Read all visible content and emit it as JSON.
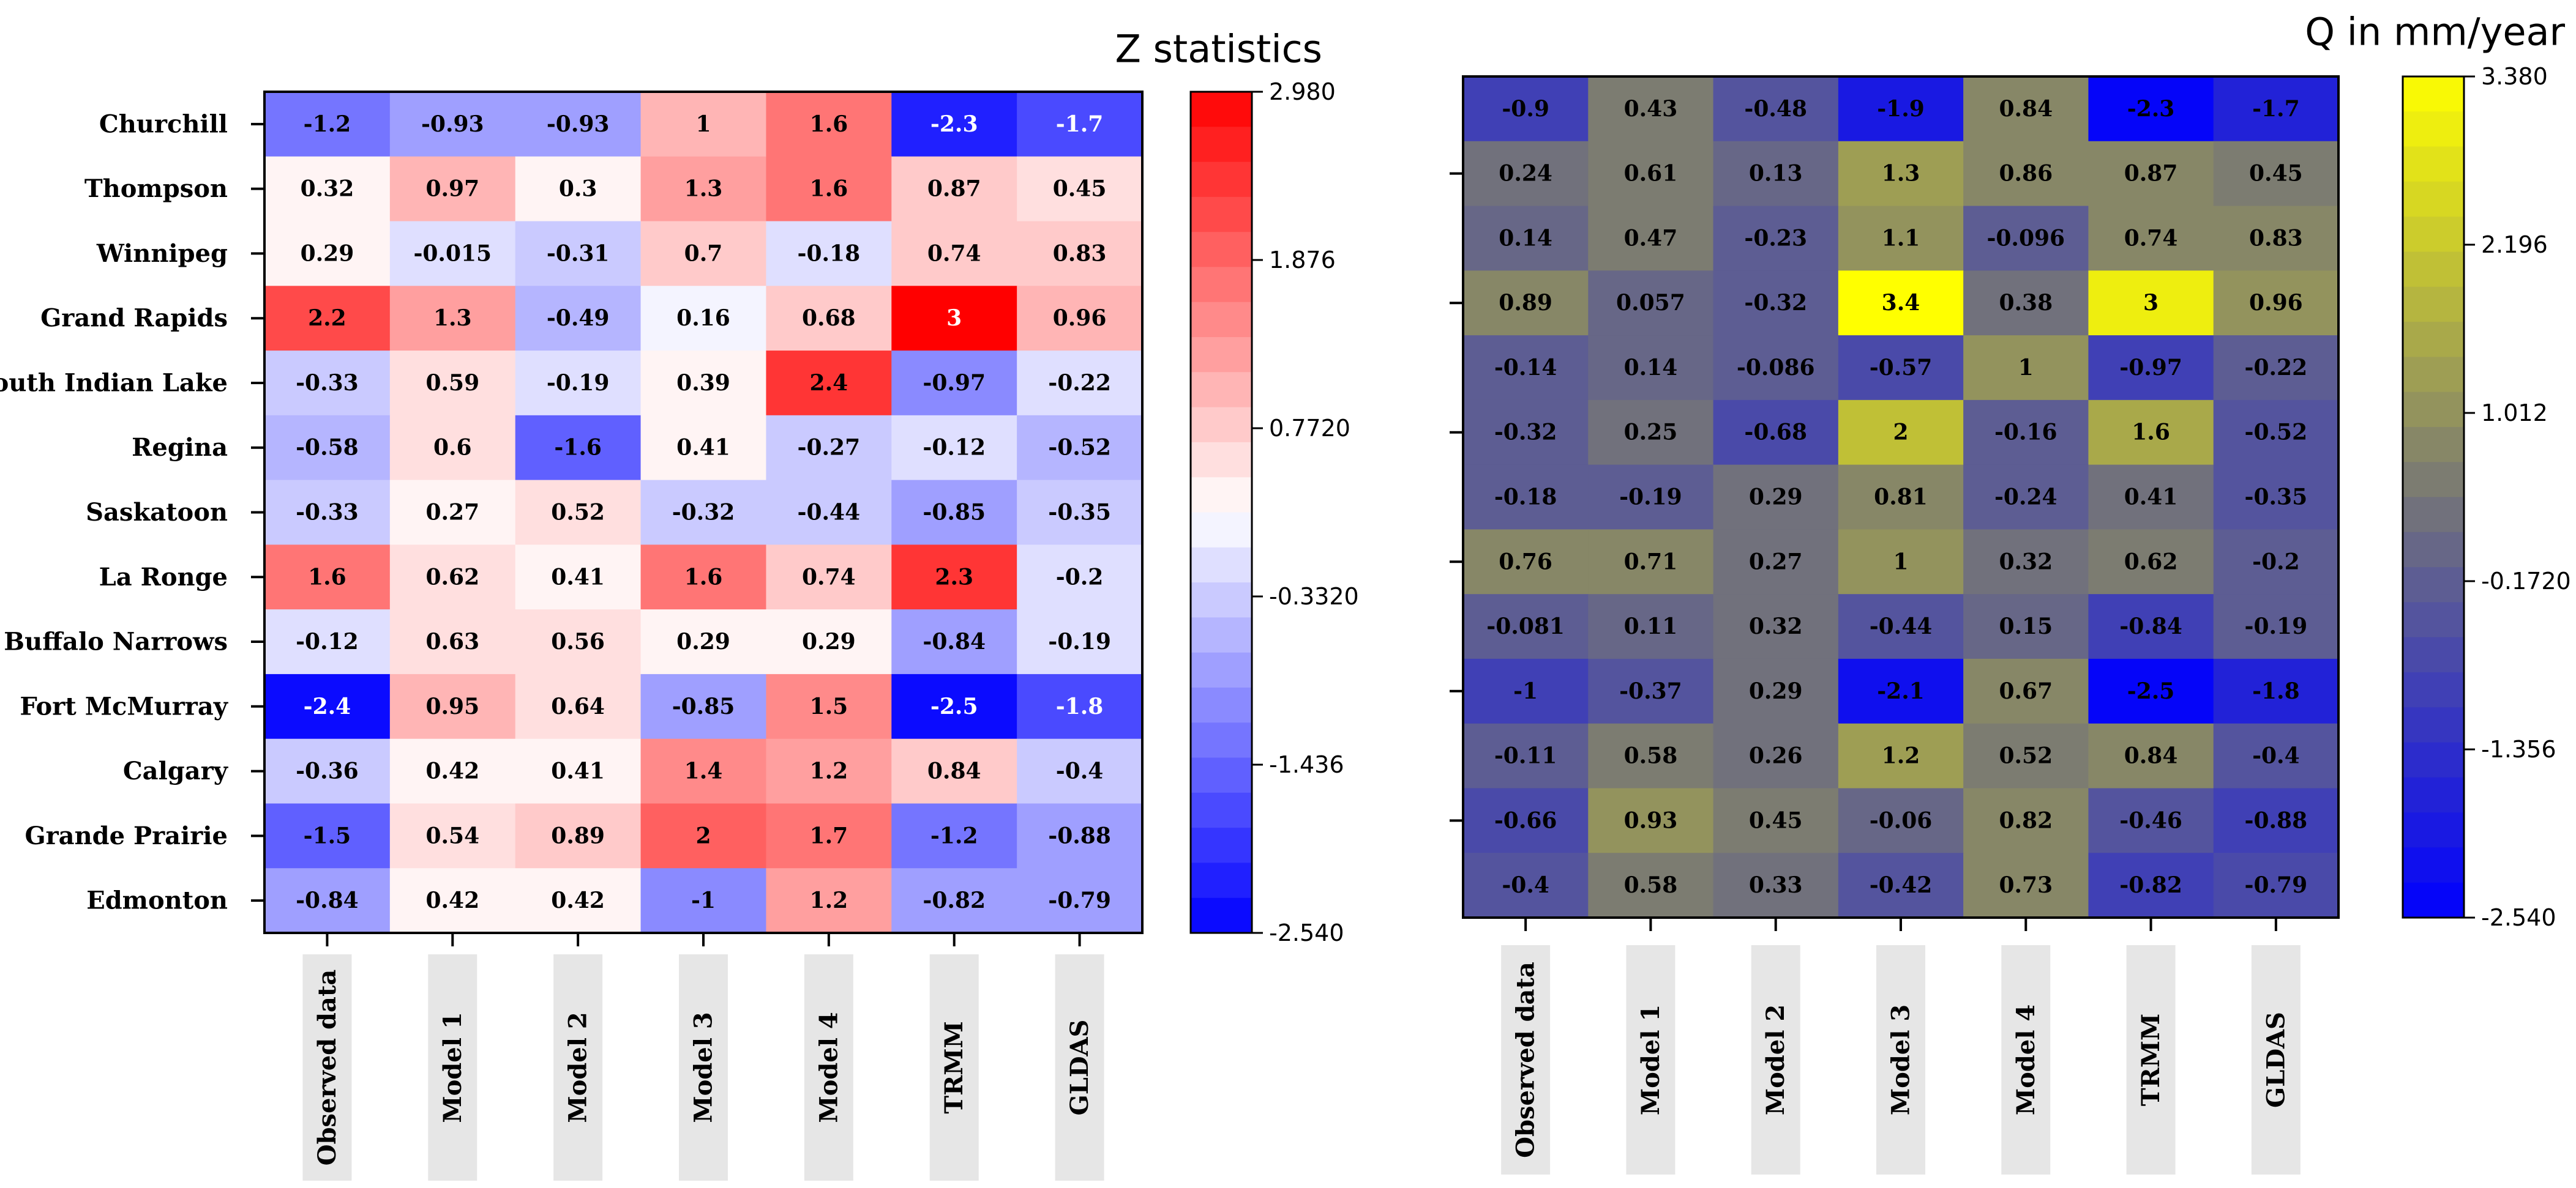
{
  "chart_data": [
    {
      "type": "heatmap",
      "title": "Z statistics",
      "rows": [
        "Churchill",
        "Thompson",
        "Winnipeg",
        "Grand Rapids",
        "South Indian Lake",
        "Regina",
        "Saskatoon",
        "La Ronge",
        "Buffalo Narrows",
        "Fort McMurray",
        "Calgary",
        "Grande Prairie",
        "Edmonton"
      ],
      "columns": [
        "Observed data",
        "Model 1",
        "Model 2",
        "Model 3",
        "Model 4",
        "TRMM",
        "GLDAS"
      ],
      "values": [
        [
          -1.2,
          -0.93,
          -0.93,
          1,
          1.6,
          -2.3,
          -1.7
        ],
        [
          0.32,
          0.97,
          0.3,
          1.3,
          1.6,
          0.87,
          0.45
        ],
        [
          0.29,
          -0.015,
          -0.31,
          0.7,
          -0.18,
          0.74,
          0.83
        ],
        [
          2.2,
          1.3,
          -0.49,
          0.16,
          0.68,
          3,
          0.96
        ],
        [
          -0.33,
          0.59,
          -0.19,
          0.39,
          2.4,
          -0.97,
          -0.22
        ],
        [
          -0.58,
          0.6,
          -1.6,
          0.41,
          -0.27,
          -0.12,
          -0.52
        ],
        [
          -0.33,
          0.27,
          0.52,
          -0.32,
          -0.44,
          -0.85,
          -0.35
        ],
        [
          1.6,
          0.62,
          0.41,
          1.6,
          0.74,
          2.3,
          -0.2
        ],
        [
          -0.12,
          0.63,
          0.56,
          0.29,
          0.29,
          -0.84,
          -0.19
        ],
        [
          -2.4,
          0.95,
          0.64,
          -0.85,
          1.5,
          -2.5,
          -1.8
        ],
        [
          -0.36,
          0.42,
          0.41,
          1.4,
          1.2,
          0.84,
          -0.4
        ],
        [
          -1.5,
          0.54,
          0.89,
          2,
          1.7,
          -1.2,
          -0.88
        ],
        [
          -0.84,
          0.42,
          0.42,
          -1,
          1.2,
          -0.82,
          -0.79
        ]
      ],
      "labels": [
        [
          "-1.2",
          "-0.93",
          "-0.93",
          "1",
          "1.6",
          "-2.3",
          "-1.7"
        ],
        [
          "0.32",
          "0.97",
          "0.3",
          "1.3",
          "1.6",
          "0.87",
          "0.45"
        ],
        [
          "0.29",
          "-0.015",
          "-0.31",
          "0.7",
          "-0.18",
          "0.74",
          "0.83"
        ],
        [
          "2.2",
          "1.3",
          "-0.49",
          "0.16",
          "0.68",
          "3",
          "0.96"
        ],
        [
          "-0.33",
          "0.59",
          "-0.19",
          "0.39",
          "2.4",
          "-0.97",
          "-0.22"
        ],
        [
          "-0.58",
          "0.6",
          "-1.6",
          "0.41",
          "-0.27",
          "-0.12",
          "-0.52"
        ],
        [
          "-0.33",
          "0.27",
          "0.52",
          "-0.32",
          "-0.44",
          "-0.85",
          "-0.35"
        ],
        [
          "1.6",
          "0.62",
          "0.41",
          "1.6",
          "0.74",
          "2.3",
          "-0.2"
        ],
        [
          "-0.12",
          "0.63",
          "0.56",
          "0.29",
          "0.29",
          "-0.84",
          "-0.19"
        ],
        [
          "-2.4",
          "0.95",
          "0.64",
          "-0.85",
          "1.5",
          "-2.5",
          "-1.8"
        ],
        [
          "-0.36",
          "0.42",
          "0.41",
          "1.4",
          "1.2",
          "0.84",
          "-0.4"
        ],
        [
          "-1.5",
          "0.54",
          "0.89",
          "2",
          "1.7",
          "-1.2",
          "-0.88"
        ],
        [
          "-0.84",
          "0.42",
          "0.42",
          "-1",
          "1.2",
          "-0.82",
          "-0.79"
        ]
      ],
      "colorbar": {
        "min": -2.54,
        "max": 2.98,
        "ticks": [
          2.98,
          1.876,
          0.772,
          -0.332,
          -1.436,
          -2.54
        ],
        "tick_labels": [
          "2.980",
          "1.876",
          "0.7720",
          "-0.3320",
          "-1.436",
          "-2.540"
        ],
        "low_color": "#0000ff",
        "mid_color": "#ffffff",
        "high_color": "#ff0000"
      },
      "show_row_labels": true
    },
    {
      "type": "heatmap",
      "title": "Q in mm/year",
      "rows": [
        "Churchill",
        "Thompson",
        "Winnipeg",
        "Grand Rapids",
        "South Indian Lake",
        "Regina",
        "Saskatoon",
        "La Ronge",
        "Buffalo Narrows",
        "Fort McMurray",
        "Calgary",
        "Grande Prairie",
        "Edmonton"
      ],
      "columns": [
        "Observed data",
        "Model 1",
        "Model 2",
        "Model 3",
        "Model 4",
        "TRMM",
        "GLDAS"
      ],
      "values": [
        [
          -0.9,
          0.43,
          -0.48,
          -1.9,
          0.84,
          -2.3,
          -1.7
        ],
        [
          0.24,
          0.61,
          0.13,
          1.3,
          0.86,
          0.87,
          0.45
        ],
        [
          0.14,
          0.47,
          -0.23,
          1.1,
          -0.096,
          0.74,
          0.83
        ],
        [
          0.89,
          0.057,
          -0.32,
          3.4,
          0.38,
          3,
          0.96
        ],
        [
          -0.14,
          0.14,
          -0.086,
          -0.57,
          1,
          -0.97,
          -0.22
        ],
        [
          -0.32,
          0.25,
          -0.68,
          2,
          -0.16,
          1.6,
          -0.52
        ],
        [
          -0.18,
          -0.19,
          0.29,
          0.81,
          -0.24,
          0.41,
          -0.35
        ],
        [
          0.76,
          0.71,
          0.27,
          1,
          0.32,
          0.62,
          -0.2
        ],
        [
          -0.081,
          0.11,
          0.32,
          -0.44,
          0.15,
          -0.84,
          -0.19
        ],
        [
          -1,
          -0.37,
          0.29,
          -2.1,
          0.67,
          -2.5,
          -1.8
        ],
        [
          -0.11,
          0.58,
          0.26,
          1.2,
          0.52,
          0.84,
          -0.4
        ],
        [
          -0.66,
          0.93,
          0.45,
          -0.06,
          0.82,
          -0.46,
          -0.88
        ],
        [
          -0.4,
          0.58,
          0.33,
          -0.42,
          0.73,
          -0.82,
          -0.79
        ]
      ],
      "labels": [
        [
          "-0.9",
          "0.43",
          "-0.48",
          "-1.9",
          "0.84",
          "-2.3",
          "-1.7"
        ],
        [
          "0.24",
          "0.61",
          "0.13",
          "1.3",
          "0.86",
          "0.87",
          "0.45"
        ],
        [
          "0.14",
          "0.47",
          "-0.23",
          "1.1",
          "-0.096",
          "0.74",
          "0.83"
        ],
        [
          "0.89",
          "0.057",
          "-0.32",
          "3.4",
          "0.38",
          "3",
          "0.96"
        ],
        [
          "-0.14",
          "0.14",
          "-0.086",
          "-0.57",
          "1",
          "-0.97",
          "-0.22"
        ],
        [
          "-0.32",
          "0.25",
          "-0.68",
          "2",
          "-0.16",
          "1.6",
          "-0.52"
        ],
        [
          "-0.18",
          "-0.19",
          "0.29",
          "0.81",
          "-0.24",
          "0.41",
          "-0.35"
        ],
        [
          "0.76",
          "0.71",
          "0.27",
          "1",
          "0.32",
          "0.62",
          "-0.2"
        ],
        [
          "-0.081",
          "0.11",
          "0.32",
          "-0.44",
          "0.15",
          "-0.84",
          "-0.19"
        ],
        [
          "-1",
          "-0.37",
          "0.29",
          "-2.1",
          "0.67",
          "-2.5",
          "-1.8"
        ],
        [
          "-0.11",
          "0.58",
          "0.26",
          "1.2",
          "0.52",
          "0.84",
          "-0.4"
        ],
        [
          "-0.66",
          "0.93",
          "0.45",
          "-0.06",
          "0.82",
          "-0.46",
          "-0.88"
        ],
        [
          "-0.4",
          "0.58",
          "0.33",
          "-0.42",
          "0.73",
          "-0.82",
          "-0.79"
        ]
      ],
      "colorbar": {
        "min": -2.54,
        "max": 3.38,
        "ticks": [
          3.38,
          2.196,
          1.012,
          -0.172,
          -1.356,
          -2.54
        ],
        "tick_labels": [
          "3.380",
          "2.196",
          "1.012",
          "-0.1720",
          "-1.356",
          "-2.540"
        ],
        "low_color": "#0000ff",
        "mid_color": "#767676",
        "high_color": "#ffff00"
      },
      "show_row_labels": false
    }
  ]
}
